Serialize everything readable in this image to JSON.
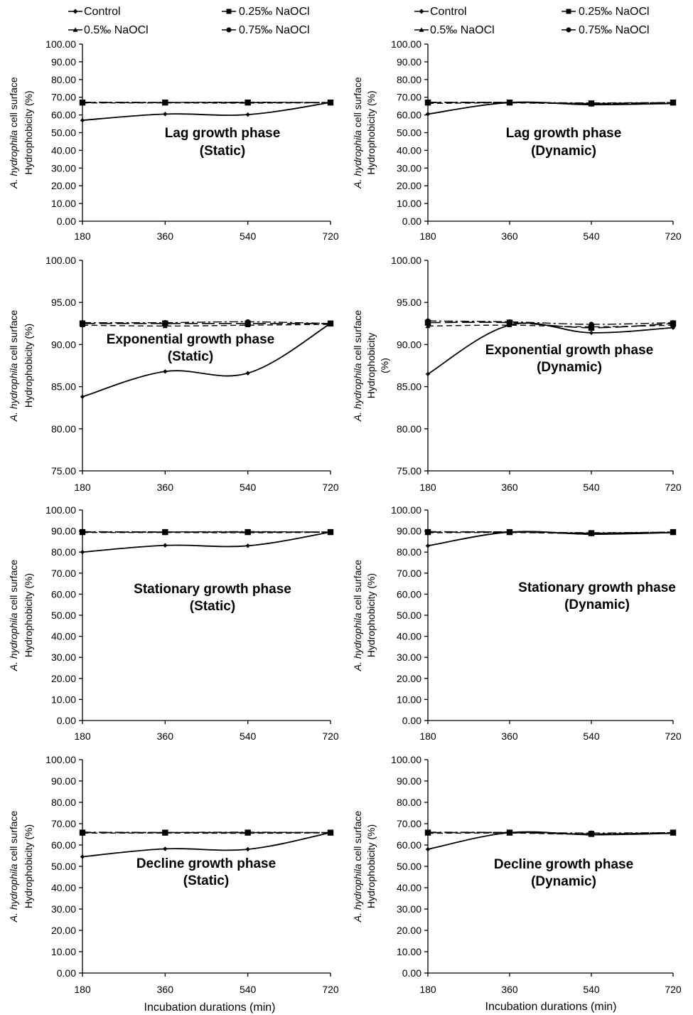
{
  "legend": {
    "items": [
      {
        "label": "Control",
        "marker": "diamond",
        "dash": "solid"
      },
      {
        "label": "0.25‰ NaOCl",
        "marker": "square",
        "dash": "long-dash"
      },
      {
        "label": "0.5‰ NaOCl",
        "marker": "triangle",
        "dash": "dash"
      },
      {
        "label": "0.75‰ NaOCl",
        "marker": "circle",
        "dash": "dash-dot"
      }
    ]
  },
  "shared": {
    "ylabel_prefix": "A. hydrophila",
    "ylabel_rest": " cell surface",
    "ylabel_line2": "Hydrophobicity (%)",
    "ylabel_line2_short": "Hydrophobicity",
    "ylabel_line3": "(%)",
    "xlabel": "Incubation durations (min)"
  },
  "chart_data": [
    {
      "type": "line",
      "title": [
        "Lag growth phase",
        "(Static)"
      ],
      "x": [
        180,
        360,
        540,
        720
      ],
      "ylim": [
        0,
        100
      ],
      "yticks": [
        0,
        10,
        20,
        30,
        40,
        50,
        60,
        70,
        80,
        90,
        100
      ],
      "series": [
        {
          "name": "Control",
          "values": [
            57.0,
            60.5,
            60.2,
            67.0
          ]
        },
        {
          "name": "0.25‰ NaOCl",
          "values": [
            67.0,
            67.0,
            67.0,
            67.0
          ]
        },
        {
          "name": "0.5‰ NaOCl",
          "values": [
            66.8,
            66.8,
            66.7,
            66.9
          ]
        },
        {
          "name": "0.75‰ NaOCl",
          "values": [
            67.2,
            67.1,
            67.2,
            67.0
          ]
        }
      ]
    },
    {
      "type": "line",
      "title": [
        "Lag growth phase",
        "(Dynamic)"
      ],
      "x": [
        180,
        360,
        540,
        720
      ],
      "ylim": [
        0,
        100
      ],
      "yticks": [
        0,
        10,
        20,
        30,
        40,
        50,
        60,
        70,
        80,
        90,
        100
      ],
      "series": [
        {
          "name": "Control",
          "values": [
            60.5,
            67.0,
            65.8,
            66.5
          ]
        },
        {
          "name": "0.25‰ NaOCl",
          "values": [
            67.0,
            67.0,
            66.5,
            67.0
          ]
        },
        {
          "name": "0.5‰ NaOCl",
          "values": [
            66.5,
            66.8,
            66.3,
            66.8
          ]
        },
        {
          "name": "0.75‰ NaOCl",
          "values": [
            67.2,
            67.1,
            66.8,
            67.0
          ]
        }
      ]
    },
    {
      "type": "line",
      "title": [
        "Exponential growth phase",
        "(Static)"
      ],
      "x": [
        180,
        360,
        540,
        720
      ],
      "ylim": [
        75,
        100
      ],
      "yticks": [
        75,
        80,
        85,
        90,
        95,
        100
      ],
      "wide_ylabel": false,
      "series": [
        {
          "name": "Control",
          "values": [
            83.8,
            86.8,
            86.6,
            92.5
          ]
        },
        {
          "name": "0.25‰ NaOCl",
          "values": [
            92.5,
            92.5,
            92.5,
            92.5
          ]
        },
        {
          "name": "0.5‰ NaOCl",
          "values": [
            92.3,
            92.2,
            92.3,
            92.4
          ]
        },
        {
          "name": "0.75‰ NaOCl",
          "values": [
            92.6,
            92.6,
            92.7,
            92.5
          ]
        }
      ]
    },
    {
      "type": "line",
      "title": [
        "Exponential growth phase",
        "(Dynamic)"
      ],
      "x": [
        180,
        360,
        540,
        720
      ],
      "ylim": [
        75,
        100
      ],
      "yticks": [
        75,
        80,
        85,
        90,
        95,
        100
      ],
      "wide_ylabel": true,
      "series": [
        {
          "name": "Control",
          "values": [
            86.5,
            92.3,
            91.4,
            92.0
          ]
        },
        {
          "name": "0.25‰ NaOCl",
          "values": [
            92.6,
            92.6,
            92.0,
            92.5
          ]
        },
        {
          "name": "0.5‰ NaOCl",
          "values": [
            92.2,
            92.3,
            92.1,
            92.3
          ]
        },
        {
          "name": "0.75‰ NaOCl",
          "values": [
            92.8,
            92.7,
            92.4,
            92.6
          ]
        }
      ]
    },
    {
      "type": "line",
      "title": [
        "Stationary growth phase",
        "(Static)"
      ],
      "x": [
        180,
        360,
        540,
        720
      ],
      "ylim": [
        0,
        100
      ],
      "yticks": [
        0,
        10,
        20,
        30,
        40,
        50,
        60,
        70,
        80,
        90,
        100
      ],
      "series": [
        {
          "name": "Control",
          "values": [
            80.0,
            83.2,
            83.0,
            89.5
          ]
        },
        {
          "name": "0.25‰ NaOCl",
          "values": [
            89.5,
            89.5,
            89.5,
            89.5
          ]
        },
        {
          "name": "0.5‰ NaOCl",
          "values": [
            89.3,
            89.3,
            89.2,
            89.4
          ]
        },
        {
          "name": "0.75‰ NaOCl",
          "values": [
            89.7,
            89.6,
            89.7,
            89.5
          ]
        }
      ]
    },
    {
      "type": "line",
      "title": [
        "Stationary growth phase",
        "(Dynamic)"
      ],
      "x": [
        180,
        360,
        540,
        720
      ],
      "ylim": [
        0,
        100
      ],
      "yticks": [
        0,
        10,
        20,
        30,
        40,
        50,
        60,
        70,
        80,
        90,
        100
      ],
      "series": [
        {
          "name": "Control",
          "values": [
            83.0,
            89.5,
            88.5,
            89.3
          ]
        },
        {
          "name": "0.25‰ NaOCl",
          "values": [
            89.5,
            89.5,
            89.0,
            89.5
          ]
        },
        {
          "name": "0.5‰ NaOCl",
          "values": [
            89.2,
            89.3,
            88.8,
            89.2
          ]
        },
        {
          "name": "0.75‰ NaOCl",
          "values": [
            89.7,
            89.6,
            89.2,
            89.5
          ]
        }
      ]
    },
    {
      "type": "line",
      "title": [
        "Decline growth phase",
        "(Static)"
      ],
      "x": [
        180,
        360,
        540,
        720
      ],
      "ylim": [
        0,
        100
      ],
      "yticks": [
        0,
        10,
        20,
        30,
        40,
        50,
        60,
        70,
        80,
        90,
        100
      ],
      "series": [
        {
          "name": "Control",
          "values": [
            54.5,
            58.2,
            58.0,
            65.8
          ]
        },
        {
          "name": "0.25‰ NaOCl",
          "values": [
            65.8,
            65.8,
            65.8,
            65.8
          ]
        },
        {
          "name": "0.5‰ NaOCl",
          "values": [
            65.6,
            65.6,
            65.5,
            65.7
          ]
        },
        {
          "name": "0.75‰ NaOCl",
          "values": [
            66.0,
            65.9,
            66.0,
            65.8
          ]
        }
      ]
    },
    {
      "type": "line",
      "title": [
        "Decline growth phase",
        "(Dynamic)"
      ],
      "x": [
        180,
        360,
        540,
        720
      ],
      "ylim": [
        0,
        100
      ],
      "yticks": [
        0,
        10,
        20,
        30,
        40,
        50,
        60,
        70,
        80,
        90,
        100
      ],
      "series": [
        {
          "name": "Control",
          "values": [
            58.0,
            65.8,
            64.8,
            65.5
          ]
        },
        {
          "name": "0.25‰ NaOCl",
          "values": [
            65.8,
            65.8,
            65.2,
            65.8
          ]
        },
        {
          "name": "0.5‰ NaOCl",
          "values": [
            65.5,
            65.6,
            65.0,
            65.6
          ]
        },
        {
          "name": "0.75‰ NaOCl",
          "values": [
            66.0,
            65.9,
            65.6,
            65.8
          ]
        }
      ]
    }
  ]
}
